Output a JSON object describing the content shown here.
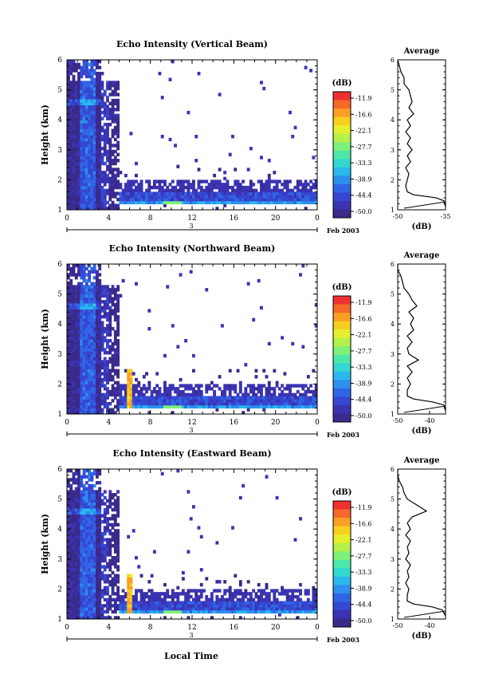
{
  "figure": {
    "date_label": "Feb 2003",
    "xlabel": "Local Time",
    "ylabel": "Height (km)",
    "colorbar_unit": "(dB)",
    "colorbar_ticks": [
      "-11.9",
      "-16.6",
      "-22.1",
      "-27.7",
      "-33.3",
      "-38.9",
      "-44.4",
      "-50.0"
    ],
    "colorbar_colors": [
      "#f03030",
      "#f56a2a",
      "#fa9e24",
      "#f7cf21",
      "#e6ef2d",
      "#b6f04a",
      "#7ff07a",
      "#4de7a8",
      "#32d8d0",
      "#2ab8ee",
      "#2d8fee",
      "#3066e6",
      "#3647d2",
      "#3a33b2",
      "#3b2a8a"
    ],
    "avg_title": "Average",
    "avg_xlabel": "(dB)",
    "day_label": "3"
  },
  "chart_data": [
    {
      "type": "heatmap",
      "title": "Echo Intensity (Vertical Beam)",
      "xlabel": "",
      "ylabel": "Height (km)",
      "x_ticks": [
        "0",
        "4",
        "8",
        "12",
        "16",
        "20",
        "0"
      ],
      "y_ticks": [
        "1",
        "2",
        "3",
        "4",
        "5",
        "6"
      ],
      "xlim": [
        0,
        24
      ],
      "ylim": [
        1,
        6
      ],
      "colorbar_range_db": [
        -50.0,
        -11.9
      ],
      "avg_profile": {
        "xlim": [
          -50,
          -35
        ],
        "x_ticks": [
          "-50",
          "-35"
        ],
        "height": [
          1.1,
          1.3,
          1.4,
          1.5,
          1.6,
          1.8,
          2.0,
          2.2,
          2.4,
          2.6,
          2.8,
          3.0,
          3.2,
          3.4,
          3.6,
          3.8,
          4.0,
          4.2,
          4.4,
          4.6,
          4.8,
          5.0,
          5.2,
          5.4,
          5.6,
          5.8,
          6.0
        ],
        "db": [
          -35,
          -35.5,
          -38,
          -45,
          -47,
          -47.5,
          -47,
          -46.5,
          -47.5,
          -46,
          -47,
          -45.5,
          -47,
          -46,
          -47.5,
          -46,
          -47,
          -45,
          -46.5,
          -45.5,
          -46,
          -46.5,
          -48,
          -48,
          -49,
          -49.5,
          -50
        ]
      }
    },
    {
      "type": "heatmap",
      "title": "Echo Intensity (Northward Beam)",
      "xlabel": "",
      "ylabel": "Height (km)",
      "x_ticks": [
        "0",
        "4",
        "8",
        "12",
        "16",
        "20",
        "0"
      ],
      "y_ticks": [
        "1",
        "2",
        "3",
        "4",
        "5",
        "6"
      ],
      "xlim": [
        0,
        24
      ],
      "ylim": [
        1,
        6
      ],
      "colorbar_range_db": [
        -50.0,
        -11.9
      ],
      "avg_profile": {
        "xlim": [
          -50,
          -35
        ],
        "x_ticks": [
          "-50",
          "-40"
        ],
        "height": [
          1.1,
          1.3,
          1.4,
          1.5,
          1.6,
          1.8,
          2.0,
          2.2,
          2.4,
          2.6,
          2.8,
          3.0,
          3.2,
          3.4,
          3.6,
          3.8,
          4.0,
          4.2,
          4.4,
          4.6,
          4.8,
          5.0,
          5.2,
          5.4,
          5.6,
          5.8,
          6.0
        ],
        "db": [
          -35,
          -35.5,
          -39,
          -45,
          -47,
          -47,
          -46,
          -47,
          -45.5,
          -47,
          -43.5,
          -46.5,
          -47,
          -45.5,
          -47,
          -45,
          -46,
          -45,
          -46.5,
          -44,
          -45.5,
          -46.5,
          -48,
          -48.5,
          -49,
          -50,
          -50
        ]
      }
    },
    {
      "type": "heatmap",
      "title": "Echo Intensity (Eastward Beam)",
      "xlabel": "Local Time",
      "ylabel": "Height (km)",
      "x_ticks": [
        "0",
        "4",
        "8",
        "12",
        "16",
        "20",
        "0"
      ],
      "y_ticks": [
        "1",
        "2",
        "3",
        "4",
        "5",
        "6"
      ],
      "xlim": [
        0,
        24
      ],
      "ylim": [
        1,
        6
      ],
      "colorbar_range_db": [
        -50.0,
        -11.9
      ],
      "avg_profile": {
        "xlim": [
          -50,
          -35
        ],
        "x_ticks": [
          "-50",
          "-40"
        ],
        "height": [
          1.1,
          1.3,
          1.4,
          1.5,
          1.6,
          1.8,
          2.0,
          2.2,
          2.4,
          2.6,
          2.8,
          3.0,
          3.2,
          3.4,
          3.6,
          3.8,
          4.0,
          4.2,
          4.4,
          4.6,
          4.8,
          5.0,
          5.2,
          5.4,
          5.6,
          5.8,
          6.0
        ],
        "db": [
          -35,
          -36,
          -39,
          -45,
          -47,
          -47,
          -46.5,
          -47.5,
          -46.5,
          -47,
          -46,
          -47.5,
          -46.5,
          -47,
          -46,
          -47.5,
          -46,
          -47,
          -45.5,
          -41,
          -44,
          -47,
          -48,
          -48.5,
          -49.5,
          -50,
          -50
        ]
      }
    }
  ]
}
